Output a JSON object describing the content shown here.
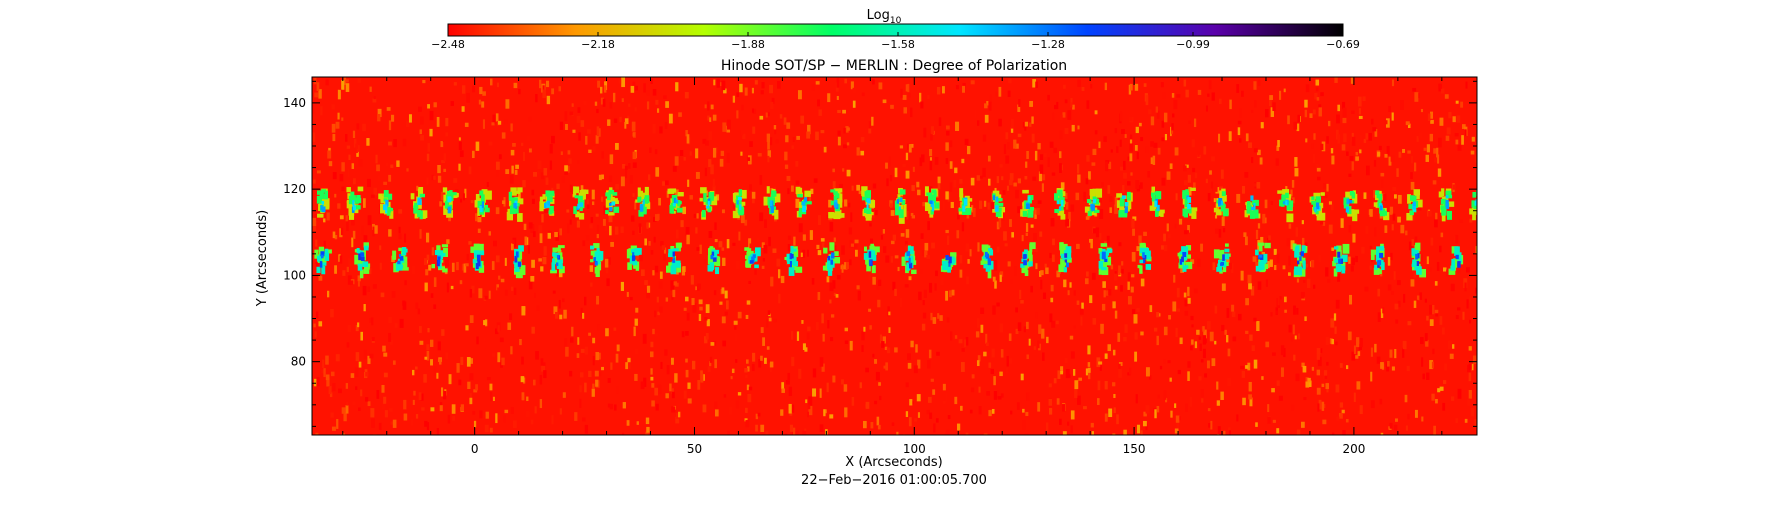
{
  "chart_data": {
    "type": "heatmap",
    "title": "Hinode SOT/SP − MERLIN : Degree of Polarization",
    "xlabel": "X (Arcseconds)",
    "ylabel": "Y (Arcseconds)",
    "date_label": "22−Feb−2016 01:00:05.700",
    "xlim": [
      -37,
      228
    ],
    "ylim": [
      63,
      146
    ],
    "x_ticks": [
      0,
      50,
      100,
      150,
      200
    ],
    "y_ticks": [
      80,
      100,
      120,
      140
    ],
    "x_tick_labels": [
      "0",
      "50",
      "100",
      "150",
      "200"
    ],
    "y_tick_labels": [
      "80",
      "100",
      "120",
      "140"
    ],
    "grid": false,
    "colorbar": {
      "title": "Log",
      "title_subscript": "10",
      "placement": "top",
      "range": [
        -2.48,
        -0.69
      ],
      "tick_values": [
        -2.48,
        -2.18,
        -1.88,
        -1.58,
        -1.28,
        -0.99,
        -0.69
      ],
      "tick_labels": [
        "−2.48",
        "−2.18",
        "−1.88",
        "−1.58",
        "−1.28",
        "−0.99",
        "−0.69"
      ],
      "colors": [
        "#ff0000",
        "#ff9900",
        "#b4ff00",
        "#00ff66",
        "#00e6ff",
        "#0044ff",
        "#5a00aa",
        "#000000"
      ]
    },
    "field": {
      "background_level": -2.45,
      "noise_level_range": [
        -2.48,
        -2.2
      ],
      "features": [
        {
          "name": "upper-polarization-row",
          "y_center": 117,
          "level_peak": -1.5,
          "x_start": -35,
          "x_spacing": 7.3
        },
        {
          "name": "lower-polarization-row",
          "y_center": 104,
          "level_peak": -1.3,
          "x_start": -35,
          "x_spacing": 8.9
        }
      ]
    }
  }
}
